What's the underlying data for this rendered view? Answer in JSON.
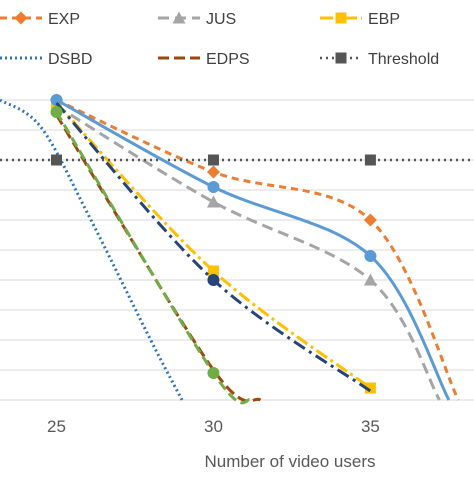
{
  "chart_data": {
    "type": "line",
    "title": "",
    "xlabel": "Number of video users",
    "ylabel": "",
    "x_ticks": [
      25,
      30,
      35
    ],
    "xlim": [
      23.2,
      38.3
    ],
    "ylim": [
      0,
      1
    ],
    "grid": true,
    "legend_position": "top",
    "series": [
      {
        "name": "EXP",
        "color": "#ED7D31",
        "dash": "7 5",
        "marker": "diamond",
        "width": 3,
        "x": [
          25,
          30,
          35,
          37.8
        ],
        "y": [
          1.0,
          0.76,
          0.6,
          0.0
        ],
        "marker_x": [
          25,
          30,
          35
        ]
      },
      {
        "name": "JUS",
        "color": "#A5A5A5",
        "dash": "11 6",
        "marker": "triangle",
        "width": 3,
        "x": [
          25,
          30,
          35,
          37.2
        ],
        "y": [
          0.98,
          0.66,
          0.4,
          0.0
        ],
        "marker_x": [
          30,
          35
        ]
      },
      {
        "name": "EBP",
        "color": "#FFC000",
        "dash": "13 4 3 4",
        "marker": "square",
        "width": 3,
        "x": [
          25,
          30,
          35
        ],
        "y": [
          0.99,
          0.43,
          0.04
        ],
        "marker_x": [
          25,
          30,
          35
        ]
      },
      {
        "name": "DSBD",
        "color": "#2E75B6",
        "dash": "2 3",
        "marker": "none",
        "width": 3,
        "x": [
          23.2,
          24.5,
          26,
          28,
          29
        ],
        "y": [
          1.0,
          0.91,
          0.62,
          0.2,
          0.0
        ],
        "marker_x": []
      },
      {
        "name": "EDPS",
        "color": "#9E480E",
        "dash": "11 5",
        "marker": "none",
        "width": 3,
        "x": [
          25,
          30,
          31.5
        ],
        "y": [
          0.95,
          0.1,
          0.0
        ],
        "marker_x": []
      },
      {
        "name": "Threshold",
        "color": "#555555",
        "dash": "2 4",
        "marker": "square",
        "width": 2.5,
        "x": [
          23.2,
          38.3
        ],
        "y": [
          0.8,
          0.8
        ],
        "marker_x": [
          25,
          30,
          35
        ]
      },
      {
        "name": "",
        "color": "#5B9BD5",
        "dash": "",
        "marker": "circle",
        "width": 3,
        "x": [
          25,
          30,
          35,
          37.5
        ],
        "y": [
          1.0,
          0.71,
          0.48,
          0.0
        ],
        "marker_x": [
          25,
          30,
          35
        ]
      },
      {
        "name": "",
        "color": "#264478",
        "dash": "13 5 3 5",
        "marker": "circle",
        "width": 3,
        "x": [
          25,
          30,
          35
        ],
        "y": [
          0.99,
          0.4,
          0.03
        ],
        "marker_x": [
          30
        ]
      },
      {
        "name": "",
        "color": "#70AD47",
        "dash": "10 5",
        "marker": "circle",
        "width": 3,
        "x": [
          25,
          30,
          31.2
        ],
        "y": [
          0.96,
          0.09,
          0.0
        ],
        "marker_x": [
          25,
          30
        ]
      }
    ]
  }
}
